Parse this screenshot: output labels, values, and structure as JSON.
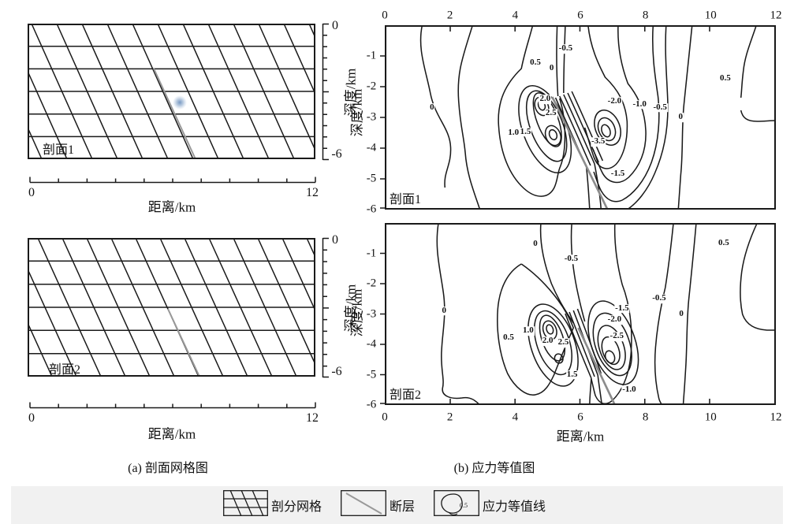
{
  "figure": {
    "caption_a": "(a) 剖面网格图",
    "caption_b": "(b) 应力等值图",
    "colors": {
      "line": "#1a1a1a",
      "fault_gray": "#999999",
      "fault_gray_dark": "#8c8c8c",
      "hypocenter_blue": "#6f93c0",
      "band_gray": "#f1f1f1"
    }
  },
  "legend": {
    "items": [
      {
        "label": "剖分网格",
        "icon": "mesh-swatch"
      },
      {
        "label": "断层",
        "icon": "fault-swatch"
      },
      {
        "label": "应力等值线",
        "icon": "contour-swatch",
        "value": "0.5"
      }
    ]
  },
  "panels": {
    "mesh1": {
      "name": "剖面1",
      "xlabel": "距离/km",
      "ylabel": "深度/km",
      "x_ticks": [
        "0",
        "12"
      ],
      "y_ticks": [
        "0",
        "-6"
      ]
    },
    "mesh2": {
      "name": "剖面2",
      "xlabel": "距离/km",
      "ylabel": "深度/km",
      "x_ticks": [
        "0",
        "12"
      ],
      "y_ticks": [
        "0",
        "-6"
      ]
    },
    "stress1": {
      "name": "剖面1",
      "ylabel": "深度/km",
      "x_tick_labels": [
        "0",
        "2",
        "4",
        "6",
        "8",
        "10",
        "12"
      ],
      "y_tick_labels": [
        "-1",
        "-2",
        "-3",
        "-4",
        "-5",
        "-6"
      ]
    },
    "stress2": {
      "name": "剖面2",
      "xlabel": "距离/km",
      "ylabel": "深度/km",
      "x_tick_labels": [
        "0",
        "2",
        "4",
        "6",
        "8",
        "10",
        "12"
      ],
      "y_tick_labels": [
        "-1",
        "-2",
        "-3",
        "-4",
        "-5",
        "-6"
      ]
    }
  },
  "chart_data": [
    {
      "id": "mesh-section-1",
      "type": "line",
      "title": "剖面1",
      "xlabel": "距离/km",
      "ylabel": "深度/km",
      "xlim": [
        0,
        12
      ],
      "ylim": [
        -6,
        0
      ],
      "x_tick_labels": [
        "0",
        "12"
      ],
      "y_tick_labels": [
        "0",
        "-6"
      ],
      "horizontal_layer_depths_km": [
        -1,
        -2,
        -3,
        -4,
        -5
      ],
      "slanted_grid_count": 14,
      "fault_line_km": {
        "x1": 5.3,
        "y1": -2.0,
        "x2": 7.0,
        "y2": -6.0
      },
      "hypocenter_km": {
        "x": 6.35,
        "y": -3.5
      }
    },
    {
      "id": "mesh-section-2",
      "type": "line",
      "title": "剖面2",
      "xlabel": "距离/km",
      "ylabel": "深度/km",
      "xlim": [
        0,
        12
      ],
      "ylim": [
        -6,
        0
      ],
      "x_tick_labels": [
        "0",
        "12"
      ],
      "y_tick_labels": [
        "0",
        "-6"
      ],
      "horizontal_layer_depths_km": [
        -1,
        -2,
        -3,
        -4,
        -5
      ],
      "slanted_grid_count": 15,
      "fault_line_km": {
        "x1": 5.85,
        "y1": -3.0,
        "x2": 7.2,
        "y2": -6.0
      }
    },
    {
      "id": "stress-section-1",
      "type": "heatmap",
      "title": "剖面1",
      "xlabel": "",
      "ylabel": "深度/km",
      "xlim": [
        0,
        12
      ],
      "ylim": [
        -6,
        0
      ],
      "x_ticks": [
        0,
        2,
        4,
        6,
        8,
        10,
        12
      ],
      "y_ticks": [
        -1,
        -2,
        -3,
        -4,
        -5,
        -6
      ],
      "contour_interval": 0.5,
      "positive_lobe_center_km": [
        4.9,
        -3.0
      ],
      "negative_lobe_center_km": [
        6.8,
        -3.3
      ],
      "fault_line_km": {
        "x1": 5.15,
        "y1": -2.3,
        "x2": 6.9,
        "y2": -6.0
      },
      "contour_labels": [
        {
          "v": "0",
          "x": 1.45,
          "y": -2.7
        },
        {
          "v": "0.5",
          "x": 4.62,
          "y": -1.22
        },
        {
          "v": "0",
          "x": 5.12,
          "y": -1.4
        },
        {
          "v": "-0.5",
          "x": 5.55,
          "y": -0.78
        },
        {
          "v": "2.0",
          "x": 4.92,
          "y": -2.42
        },
        {
          "v": "2.5",
          "x": 5.1,
          "y": -2.88
        },
        {
          "v": "1.0",
          "x": 3.95,
          "y": -3.52
        },
        {
          "v": "1.5",
          "x": 4.32,
          "y": -3.48
        },
        {
          "v": "-2.0",
          "x": 7.05,
          "y": -2.48
        },
        {
          "v": "-1.0",
          "x": 7.82,
          "y": -2.58
        },
        {
          "v": "-0.5",
          "x": 8.45,
          "y": -2.68
        },
        {
          "v": "0",
          "x": 9.08,
          "y": -3.0
        },
        {
          "v": "-3.5",
          "x": 6.55,
          "y": -3.8
        },
        {
          "v": "-1.5",
          "x": 7.15,
          "y": -4.85
        },
        {
          "v": "0.5",
          "x": 10.45,
          "y": -1.74
        }
      ]
    },
    {
      "id": "stress-section-2",
      "type": "heatmap",
      "title": "剖面2",
      "xlabel": "距离/km",
      "ylabel": "深度/km",
      "xlim": [
        0,
        12
      ],
      "ylim": [
        -6,
        0
      ],
      "x_ticks": [
        0,
        2,
        4,
        6,
        8,
        10,
        12
      ],
      "y_ticks": [
        -1,
        -2,
        -3,
        -4,
        -5,
        -6
      ],
      "contour_interval": 0.5,
      "positive_lobe_center_km": [
        5.2,
        -4.0
      ],
      "negative_lobe_center_km": [
        6.95,
        -4.2
      ],
      "fault_line_km": {
        "x1": 5.95,
        "y1": -3.5,
        "x2": 7.1,
        "y2": -6.0
      },
      "contour_labels": [
        {
          "v": "0",
          "x": 4.62,
          "y": -0.7
        },
        {
          "v": "-0.5",
          "x": 5.72,
          "y": -1.2
        },
        {
          "v": "0.5",
          "x": 10.4,
          "y": -0.68
        },
        {
          "v": "0",
          "x": 1.82,
          "y": -2.9
        },
        {
          "v": "-0.5",
          "x": 8.42,
          "y": -2.5
        },
        {
          "v": "-1.5",
          "x": 7.28,
          "y": -2.82
        },
        {
          "v": "-2.0",
          "x": 7.05,
          "y": -3.2
        },
        {
          "v": "-2.5",
          "x": 7.12,
          "y": -3.75
        },
        {
          "v": "0",
          "x": 9.1,
          "y": -3.0
        },
        {
          "v": "1.0",
          "x": 4.4,
          "y": -3.56
        },
        {
          "v": "0.5",
          "x": 3.8,
          "y": -3.78
        },
        {
          "v": "2.0",
          "x": 5.0,
          "y": -3.9
        },
        {
          "v": "2.5",
          "x": 5.48,
          "y": -3.95
        },
        {
          "v": "1.5",
          "x": 5.75,
          "y": -5.0
        },
        {
          "v": "-1.0",
          "x": 7.5,
          "y": -5.5
        }
      ]
    }
  ]
}
